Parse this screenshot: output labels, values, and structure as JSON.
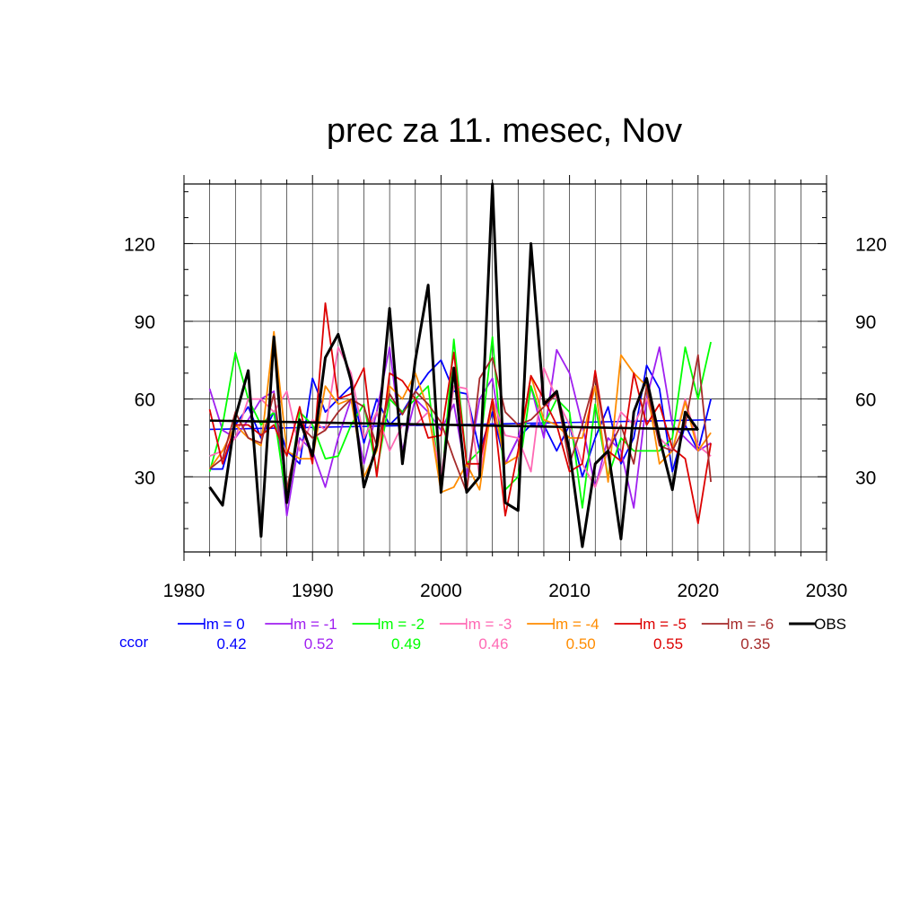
{
  "chart_data": {
    "type": "line",
    "title": "prec za 11. mesec, Nov",
    "xlabel": "",
    "ylabel": "",
    "xlim": [
      1980,
      2030
    ],
    "ylim": [
      1,
      143
    ],
    "xticks": [
      1980,
      1990,
      2000,
      2010,
      2020,
      2030
    ],
    "yticks": [
      30,
      60,
      90,
      120
    ],
    "grid": true,
    "legend_position": "bottom",
    "x": [
      1982,
      1983,
      1984,
      1985,
      1986,
      1987,
      1988,
      1989,
      1990,
      1991,
      1992,
      1993,
      1994,
      1995,
      1996,
      1997,
      1998,
      1999,
      2000,
      2001,
      2002,
      2003,
      2004,
      2005,
      2006,
      2007,
      2008,
      2009,
      2010,
      2011,
      2012,
      2013,
      2014,
      2015,
      2016,
      2017,
      2018,
      2019,
      2020,
      2021
    ],
    "ccor_label": "ccor",
    "series": [
      {
        "name": "lm = 0",
        "color": "#0000ff",
        "ccor": "0.42",
        "values": [
          33,
          33,
          50,
          57,
          45,
          55,
          40,
          35,
          68,
          55,
          60,
          65,
          43,
          60,
          50,
          55,
          63,
          70,
          75,
          63,
          62,
          40,
          55,
          35,
          45,
          50,
          50,
          40,
          50,
          30,
          45,
          57,
          35,
          45,
          73,
          64,
          32,
          50,
          40,
          60
        ],
        "trend": [
          48.3,
          52.0
        ]
      },
      {
        "name": "lm = -1",
        "color": "#a020f0",
        "ccor": "0.52",
        "values": [
          64,
          48,
          45,
          52,
          60,
          63,
          15,
          45,
          40,
          26,
          45,
          60,
          35,
          55,
          80,
          40,
          60,
          55,
          48,
          58,
          30,
          60,
          68,
          35,
          45,
          65,
          45,
          79,
          70,
          50,
          26,
          45,
          40,
          18,
          60,
          80,
          50,
          45,
          40,
          43
        ],
        "trend": null
      },
      {
        "name": "lm = -2",
        "color": "#00ff00",
        "ccor": "0.49",
        "values": [
          32,
          50,
          78,
          60,
          50,
          55,
          20,
          55,
          50,
          37,
          38,
          50,
          58,
          32,
          60,
          55,
          60,
          65,
          25,
          83,
          35,
          40,
          84,
          25,
          30,
          65,
          50,
          60,
          55,
          18,
          58,
          30,
          45,
          40,
          40,
          40,
          45,
          80,
          60,
          82
        ],
        "trend": null
      },
      {
        "name": "lm = -3",
        "color": "#ff69b4",
        "ccor": "0.46",
        "values": [
          38,
          40,
          45,
          60,
          60,
          55,
          63,
          40,
          52,
          48,
          80,
          70,
          45,
          55,
          40,
          50,
          50,
          55,
          30,
          65,
          64,
          30,
          60,
          46,
          45,
          32,
          72,
          60,
          50,
          35,
          26,
          40,
          55,
          50,
          60,
          45,
          40,
          60,
          42,
          38
        ],
        "trend": null
      },
      {
        "name": "lm = -4",
        "color": "#ff8c00",
        "ccor": "0.50",
        "values": [
          33,
          40,
          50,
          45,
          42,
          86,
          40,
          37,
          37,
          65,
          58,
          60,
          30,
          40,
          65,
          60,
          70,
          56,
          24,
          26,
          35,
          25,
          60,
          35,
          38,
          69,
          52,
          50,
          45,
          45,
          65,
          28,
          77,
          70,
          65,
          35,
          40,
          59,
          40,
          47
        ],
        "trend": null
      },
      {
        "name": "lm = -5",
        "color": "#dd0000",
        "ccor": "0.55",
        "values": [
          56,
          35,
          50,
          50,
          46,
          50,
          38,
          57,
          35,
          97,
          60,
          62,
          72,
          30,
          70,
          67,
          60,
          45,
          46,
          78,
          35,
          35,
          60,
          15,
          40,
          69,
          60,
          50,
          32,
          35,
          71,
          40,
          36,
          70,
          50,
          58,
          41,
          37,
          12,
          43
        ],
        "trend": null
      },
      {
        "name": "lm = -6",
        "color": "#a52a2a",
        "ccor": "0.35",
        "values": [
          33,
          37,
          55,
          45,
          43,
          62,
          25,
          50,
          45,
          48,
          55,
          60,
          57,
          42,
          62,
          54,
          63,
          58,
          51,
          37,
          24,
          68,
          76,
          55,
          50,
          52,
          57,
          62,
          35,
          50,
          68,
          40,
          50,
          35,
          65,
          42,
          40,
          50,
          77,
          28
        ],
        "trend": null
      },
      {
        "name": "OBS",
        "color": "#000000",
        "ccor": null,
        "values": [
          26,
          19,
          53,
          71,
          7,
          84,
          20,
          52,
          38,
          76,
          85,
          67,
          26,
          42,
          95,
          35,
          75,
          104,
          24,
          72,
          24,
          30,
          143,
          20,
          17,
          120,
          58,
          63,
          40,
          3,
          35,
          40,
          6,
          55,
          68,
          45,
          25,
          55,
          48,
          null
        ],
        "trend": [
          51.7,
          48.3
        ]
      }
    ]
  }
}
